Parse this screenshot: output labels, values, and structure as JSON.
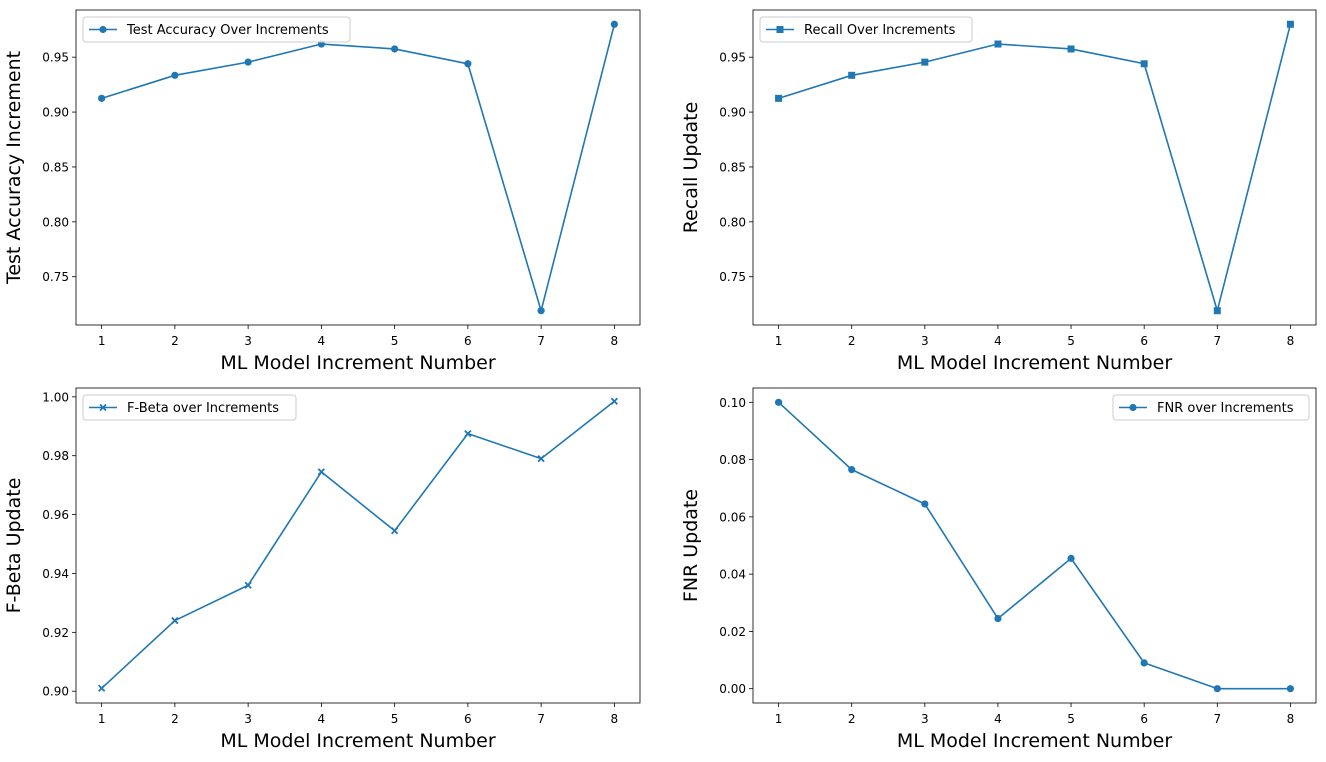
{
  "chart_data": [
    {
      "type": "line",
      "x": [
        1,
        2,
        3,
        4,
        5,
        6,
        7,
        8
      ],
      "series": [
        {
          "name": "Test Accuracy Over Increments",
          "values": [
            0.9125,
            0.9335,
            0.9455,
            0.962,
            0.9575,
            0.944,
            0.719,
            0.98
          ],
          "marker": "circle",
          "color": "#1f77b4"
        }
      ],
      "xlabel": "ML Model Increment Number",
      "ylabel": "Test Accuracy Increment",
      "xticks": [
        "1",
        "2",
        "3",
        "4",
        "5",
        "6",
        "7",
        "8"
      ],
      "yticks": [
        "0.75",
        "0.80",
        "0.85",
        "0.90",
        "0.95"
      ],
      "ytick_values": [
        0.75,
        0.8,
        0.85,
        0.9,
        0.95
      ],
      "xlim": [
        0.65,
        8.35
      ],
      "ylim": [
        0.706,
        0.993
      ],
      "legend": "upper-left",
      "grid": false
    },
    {
      "type": "line",
      "x": [
        1,
        2,
        3,
        4,
        5,
        6,
        7,
        8
      ],
      "series": [
        {
          "name": "Recall Over Increments",
          "values": [
            0.9125,
            0.9335,
            0.9455,
            0.962,
            0.9575,
            0.944,
            0.719,
            0.98
          ],
          "marker": "square",
          "color": "#1f77b4"
        }
      ],
      "xlabel": "ML Model Increment Number",
      "ylabel": "Recall Update",
      "xticks": [
        "1",
        "2",
        "3",
        "4",
        "5",
        "6",
        "7",
        "8"
      ],
      "yticks": [
        "0.75",
        "0.80",
        "0.85",
        "0.90",
        "0.95"
      ],
      "ytick_values": [
        0.75,
        0.8,
        0.85,
        0.9,
        0.95
      ],
      "xlim": [
        0.65,
        8.35
      ],
      "ylim": [
        0.706,
        0.993
      ],
      "legend": "upper-left",
      "grid": false
    },
    {
      "type": "line",
      "x": [
        1,
        2,
        3,
        4,
        5,
        6,
        7,
        8
      ],
      "series": [
        {
          "name": "F-Beta over Increments",
          "values": [
            0.901,
            0.924,
            0.936,
            0.9745,
            0.9545,
            0.9875,
            0.979,
            0.9985
          ],
          "marker": "x",
          "color": "#1f77b4"
        }
      ],
      "xlabel": "ML Model Increment Number",
      "ylabel": "F-Beta Update",
      "xticks": [
        "1",
        "2",
        "3",
        "4",
        "5",
        "6",
        "7",
        "8"
      ],
      "yticks": [
        "0.90",
        "0.92",
        "0.94",
        "0.96",
        "0.98",
        "1.00"
      ],
      "ytick_values": [
        0.9,
        0.92,
        0.94,
        0.96,
        0.98,
        1.0
      ],
      "xlim": [
        0.65,
        8.35
      ],
      "ylim": [
        0.896,
        1.003
      ],
      "legend": "upper-left",
      "grid": false
    },
    {
      "type": "line",
      "x": [
        1,
        2,
        3,
        4,
        5,
        6,
        7,
        8
      ],
      "series": [
        {
          "name": "FNR over Increments",
          "values": [
            0.1,
            0.0765,
            0.0645,
            0.0245,
            0.0455,
            0.009,
            0.0,
            0.0
          ],
          "marker": "circle",
          "color": "#1f77b4"
        }
      ],
      "xlabel": "ML Model Increment Number",
      "ylabel": "FNR Update",
      "xticks": [
        "1",
        "2",
        "3",
        "4",
        "5",
        "6",
        "7",
        "8"
      ],
      "yticks": [
        "0.00",
        "0.02",
        "0.04",
        "0.06",
        "0.08",
        "0.10"
      ],
      "ytick_values": [
        0.0,
        0.02,
        0.04,
        0.06,
        0.08,
        0.1
      ],
      "xlim": [
        0.65,
        8.35
      ],
      "ylim": [
        -0.005,
        0.105
      ],
      "legend": "upper-right",
      "grid": false
    }
  ]
}
